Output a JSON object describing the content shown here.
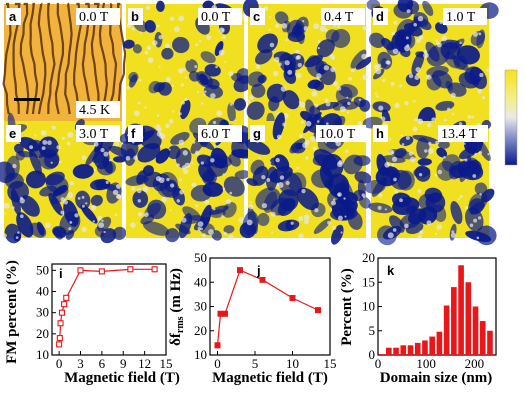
{
  "colors": {
    "map_low": "#0a1a8a",
    "map_mid": "#e8e8e8",
    "map_high": "#f0e020",
    "topo_dark": "#5a2f0e",
    "topo_light": "#f2b33c",
    "data_red": "#e8171a"
  },
  "panels": [
    {
      "label": "a",
      "field": "0.0 T",
      "extra": "4.5 K",
      "kind": "topography"
    },
    {
      "label": "b",
      "field": "0.0 T",
      "kind": "mfm",
      "blue_fraction": 0.15
    },
    {
      "label": "c",
      "field": "0.4 T",
      "kind": "mfm",
      "blue_fraction": 0.32
    },
    {
      "label": "d",
      "field": "1.0 T",
      "kind": "mfm",
      "blue_fraction": 0.38
    },
    {
      "label": "e",
      "field": "3.0 T",
      "kind": "mfm",
      "blue_fraction": 0.5
    },
    {
      "label": "f",
      "field": "6.0 T",
      "kind": "mfm",
      "blue_fraction": 0.5
    },
    {
      "label": "g",
      "field": "10.0 T",
      "kind": "mfm",
      "blue_fraction": 0.5
    },
    {
      "label": "h",
      "field": "13.4 T",
      "kind": "mfm",
      "blue_fraction": 0.5
    }
  ],
  "chart_data": [
    {
      "panel": "i",
      "type": "line",
      "xlabel": "Magnetic field (T)",
      "ylabel": "FM percent (%)",
      "xlim": [
        -1,
        15
      ],
      "ylim": [
        10,
        53
      ],
      "xticks": [
        0,
        3,
        6,
        9,
        12,
        15
      ],
      "yticks": [
        10,
        20,
        30,
        40,
        50
      ],
      "x": [
        0,
        0.1,
        0.2,
        0.4,
        0.7,
        1.0,
        3.0,
        6.0,
        10.0,
        13.4
      ],
      "y": [
        15,
        18,
        25,
        30,
        34,
        37,
        50,
        49.5,
        50.5,
        50.5
      ],
      "marker": "open-square",
      "error_bars": true
    },
    {
      "panel": "j",
      "type": "line",
      "xlabel": "Magnetic field (T)",
      "ylabel": "δf_rms (m Hz)",
      "ylabel_main": "δf",
      "ylabel_sub": "rms",
      "ylabel_unit": " (m Hz)",
      "xlim": [
        -1,
        15
      ],
      "ylim": [
        10,
        50
      ],
      "xticks": [
        0,
        5,
        10,
        15
      ],
      "yticks": [
        10,
        20,
        30,
        40,
        50
      ],
      "x": [
        0,
        0.4,
        1.0,
        3.0,
        6.0,
        10.0,
        13.4
      ],
      "y": [
        14,
        27,
        27,
        45,
        41,
        33.5,
        28.5
      ],
      "marker": "filled-square"
    },
    {
      "panel": "k",
      "type": "bar",
      "xlabel": "Domain size (nm)",
      "ylabel": "Percent (%)",
      "xlim": [
        0,
        245
      ],
      "ylim": [
        0,
        20
      ],
      "xticks": [
        0,
        100,
        200
      ],
      "yticks": [
        0,
        5,
        10,
        15,
        20
      ],
      "bin_width": 15,
      "x": [
        7.5,
        22.5,
        37.5,
        52.5,
        67.5,
        82.5,
        97.5,
        112.5,
        127.5,
        142.5,
        157.5,
        172.5,
        187.5,
        202.5,
        217.5,
        232.5
      ],
      "values": [
        0.2,
        1.5,
        1.5,
        2.0,
        2.0,
        2.5,
        3.0,
        3.8,
        4.8,
        10.2,
        14.0,
        18.5,
        15.0,
        10.0,
        7.0,
        5.0
      ]
    }
  ]
}
